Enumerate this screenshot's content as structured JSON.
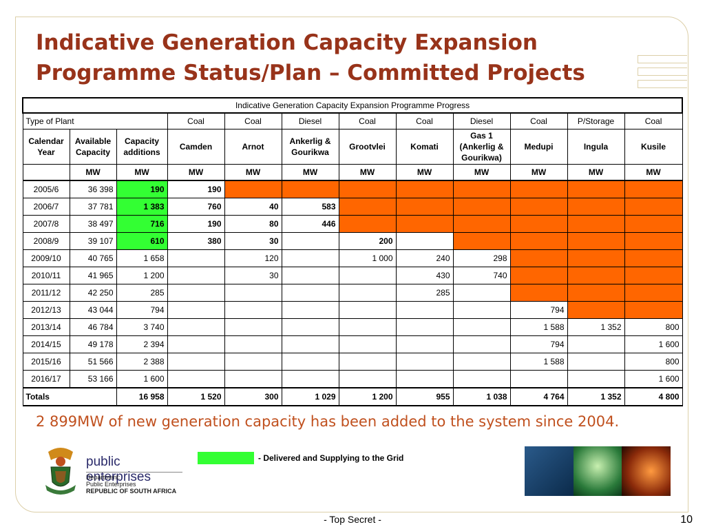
{
  "title": {
    "line1": "Indicative Generation Capacity Expansion",
    "line2": "Programme Status/Plan – Committed Projects"
  },
  "table": {
    "caption": "Indicative Generation Capacity Expansion Programme Progress",
    "type_of_plant_label": "Type of Plant",
    "plant_types": [
      "Coal",
      "Coal",
      "Diesel",
      "Coal",
      "Coal",
      "Diesel",
      "Coal",
      "P/Storage",
      "Coal"
    ],
    "calendar_year_label": "Calendar Year",
    "available_capacity_label": "Available Capacity",
    "capacity_additions_label": "Capacity additions",
    "projects": [
      "Camden",
      "Arnot",
      "Ankerlig & Gourikwa",
      "Grootvlei",
      "Komati",
      "Gas 1 (Ankerlig & Gourikwa)",
      "Medupi",
      "Ingula",
      "Kusile"
    ],
    "unit": "MW",
    "rows": [
      {
        "year": "2005/6",
        "available": "36 398",
        "additions": "190",
        "values": [
          "190",
          "",
          "",
          "",
          "",
          "",
          "",
          "",
          ""
        ]
      },
      {
        "year": "2006/7",
        "available": "37 781",
        "additions": "1 383",
        "values": [
          "760",
          "40",
          "583",
          "",
          "",
          "",
          "",
          "",
          ""
        ]
      },
      {
        "year": "2007/8",
        "available": "38 497",
        "additions": "716",
        "values": [
          "190",
          "80",
          "446",
          "",
          "",
          "",
          "",
          "",
          ""
        ]
      },
      {
        "year": "2008/9",
        "available": "39 107",
        "additions": "610",
        "values": [
          "380",
          "30",
          "",
          "200",
          "",
          "",
          "",
          "",
          ""
        ]
      },
      {
        "year": "2009/10",
        "available": "40 765",
        "additions": "1 658",
        "values": [
          "",
          "120",
          "",
          "1 000",
          "240",
          "298",
          "",
          "",
          ""
        ]
      },
      {
        "year": "2010/11",
        "available": "41 965",
        "additions": "1 200",
        "values": [
          "",
          "30",
          "",
          "",
          "430",
          "740",
          "",
          "",
          ""
        ]
      },
      {
        "year": "2011/12",
        "available": "42 250",
        "additions": "285",
        "values": [
          "",
          "",
          "",
          "",
          "285",
          "",
          "",
          "",
          ""
        ]
      },
      {
        "year": "2012/13",
        "available": "43 044",
        "additions": "794",
        "values": [
          "",
          "",
          "",
          "",
          "",
          "",
          "794",
          "",
          ""
        ]
      },
      {
        "year": "2013/14",
        "available": "46 784",
        "additions": "3 740",
        "values": [
          "",
          "",
          "",
          "",
          "",
          "",
          "1 588",
          "1 352",
          "800"
        ]
      },
      {
        "year": "2014/15",
        "available": "49 178",
        "additions": "2 394",
        "values": [
          "",
          "",
          "",
          "",
          "",
          "",
          "794",
          "",
          "1 600"
        ]
      },
      {
        "year": "2015/16",
        "available": "51 566",
        "additions": "2 388",
        "values": [
          "",
          "",
          "",
          "",
          "",
          "",
          "1 588",
          "",
          "800"
        ]
      },
      {
        "year": "2016/17",
        "available": "53 166",
        "additions": "1 600",
        "values": [
          "",
          "",
          "",
          "",
          "",
          "",
          "",
          "",
          "1 600"
        ]
      }
    ],
    "orange_cells": [
      [
        1,
        2,
        3,
        4,
        5,
        6,
        7,
        8
      ],
      [
        3,
        4,
        5,
        6,
        7,
        8
      ],
      [
        3,
        4,
        5,
        6,
        7,
        8
      ],
      [
        5,
        6,
        7,
        8
      ],
      [
        6,
        7,
        8
      ],
      [
        6,
        7,
        8
      ],
      [
        6,
        7,
        8
      ],
      [
        7,
        8
      ],
      [],
      [],
      [],
      []
    ],
    "green_rows": [
      0,
      1,
      2,
      3
    ],
    "bold_rows": [
      0,
      1,
      2,
      3
    ],
    "totals": {
      "label": "Totals",
      "additions": "16 958",
      "values": [
        "1 520",
        "300",
        "1 029",
        "1 200",
        "955",
        "1 038",
        "4 764",
        "1 352",
        "4 800"
      ]
    },
    "colors": {
      "in_progress": "#ff6600",
      "delivered": "#33ff33"
    }
  },
  "note": "2 899MW of new generation capacity has been added to the system since 2004.",
  "legend": {
    "label": "- Delivered and Supplying to the Grid",
    "color": "#33ff33"
  },
  "logo": {
    "brand": "public enterprises",
    "dept_line1": "Department:",
    "dept_line2": "Public Enterprises",
    "dept_line3": "REPUBLIC OF SOUTH AFRICA"
  },
  "footer": {
    "classification": "- Top Secret -",
    "page": "10"
  }
}
